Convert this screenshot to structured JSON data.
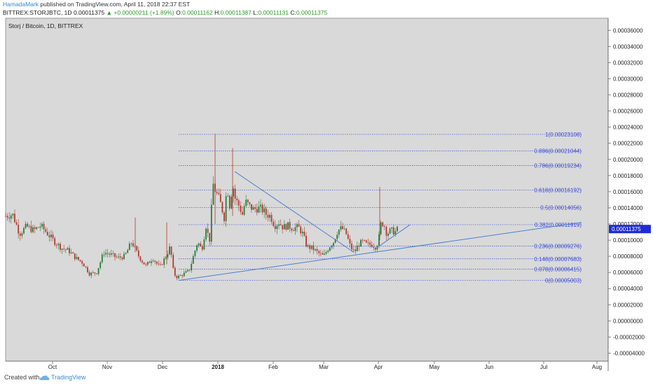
{
  "header": {
    "author": "HamadaMark",
    "published": "published on TradingView.com, April 11, 2018 22:37 EST",
    "symbol_line_prefix": "BITTREX:STORJBTC, 1D",
    "last": "0.00011375",
    "change": "+0.00000211 (+1.89%)",
    "o_label": "O:",
    "o_value": "0.00011162",
    "h_label": "H:",
    "h_value": "0.00011387",
    "l_label": "L:",
    "l_value": "0.00011131",
    "c_label": "C:",
    "c_value": "0.00011375"
  },
  "footer": {
    "created_with": "Created with",
    "brand": "TradingView",
    "logo_icon": "tradingview-cloud-icon"
  },
  "colors": {
    "background": "#d9d9d9",
    "up_candle": "#2a7a3a",
    "down_candle": "#b03a2e",
    "fib_line": "#3a4bd6",
    "trend_line": "#4a7fd4",
    "price_tag": "#1f2cd6"
  },
  "chart_data": {
    "type": "candlestick",
    "title": "Storj / Bitcoin, 1D, BITTREX",
    "x_ticks": [
      "Oct",
      "Nov",
      "Dec",
      "2018",
      "Feb",
      "Mar",
      "Apr",
      "May",
      "Jun",
      "Jul",
      "Aug"
    ],
    "y_ticks": [
      "0.00036000",
      "0.00034000",
      "0.00032000",
      "0.00030000",
      "0.00028000",
      "0.00026000",
      "0.00024000",
      "0.00022000",
      "0.00020000",
      "0.00018000",
      "0.00016000",
      "0.00014000",
      "0.00012000",
      "0.00010000",
      "0.00008000",
      "0.00006000",
      "0.00004000",
      "0.00002000",
      "0.00000000",
      "-0.00002000",
      "-0.00004000"
    ],
    "ylim": [
      -5e-05,
      0.000375
    ],
    "current_price_label": "0.00011375",
    "current_price": 0.00011375,
    "fib_levels": [
      {
        "label": "1(0.00023108)",
        "value": 0.00023108
      },
      {
        "label": "0.886(0.00021044)",
        "value": 0.00021044
      },
      {
        "label": "0.786(0.00019234)",
        "value": 0.00019234
      },
      {
        "label": "0.618(0.00016192)",
        "value": 0.00016192
      },
      {
        "label": "0.5(0.00014056)",
        "value": 0.00014056
      },
      {
        "label": "0.382(0.00011919)",
        "value": 0.00011919
      },
      {
        "label": "0.236(0.00009276)",
        "value": 9.276e-05
      },
      {
        "label": "0.148(0.00007683)",
        "value": 7.683e-05
      },
      {
        "label": "0.078(0.00006415)",
        "value": 6.415e-05
      },
      {
        "label": "0(0.00005003)",
        "value": 5.003e-05
      }
    ],
    "path_points": [
      [
        0,
        0.000165
      ],
      [
        8,
        0.00013
      ],
      [
        18,
        0.000132
      ],
      [
        28,
        0.000108
      ],
      [
        38,
        0.000117
      ],
      [
        48,
        0.000112
      ],
      [
        58,
        0.000118
      ],
      [
        68,
        0.000108
      ],
      [
        78,
        9.8e-05
      ],
      [
        88,
        9e-05
      ],
      [
        98,
        8.7e-05
      ],
      [
        108,
        7.8e-05
      ],
      [
        118,
        7.2e-05
      ],
      [
        128,
        5.8e-05
      ],
      [
        138,
        6e-05
      ],
      [
        148,
        8.5e-05
      ],
      [
        158,
        8.2e-05
      ],
      [
        168,
        7.8e-05
      ],
      [
        178,
        8e-05
      ],
      [
        188,
        9.8e-05
      ],
      [
        198,
        8e-05
      ],
      [
        208,
        6.8e-05
      ],
      [
        218,
        7.8e-05
      ],
      [
        228,
        6.6e-05
      ],
      [
        238,
        8.2e-05
      ],
      [
        243,
        9.2e-05
      ],
      [
        248,
        5.8e-05
      ],
      [
        253,
        5.4e-05
      ],
      [
        262,
        5.8e-05
      ],
      [
        270,
        6.2e-05
      ],
      [
        276,
        8e-05
      ],
      [
        282,
        9.8e-05
      ],
      [
        288,
        8.8e-05
      ],
      [
        294,
        0.000118
      ],
      [
        299,
        9.8e-05
      ],
      [
        304,
        0.00017
      ],
      [
        308,
        0.00016
      ],
      [
        312,
        0.000152
      ],
      [
        316,
        0.000142
      ],
      [
        320,
        0.000128
      ],
      [
        324,
        0.000168
      ],
      [
        328,
        0.000142
      ],
      [
        332,
        0.00017
      ],
      [
        336,
        0.00015
      ],
      [
        340,
        0.000145
      ],
      [
        346,
        0.000132
      ],
      [
        350,
        0.000148
      ],
      [
        356,
        0.000142
      ],
      [
        362,
        0.000138
      ],
      [
        368,
        0.00014
      ],
      [
        374,
        0.000138
      ],
      [
        380,
        0.000132
      ],
      [
        386,
        0.00013
      ],
      [
        392,
        0.000118
      ],
      [
        398,
        0.000122
      ],
      [
        404,
        0.000116
      ],
      [
        410,
        0.000118
      ],
      [
        418,
        0.000115
      ],
      [
        426,
        0.000116
      ],
      [
        432,
        0.000108
      ],
      [
        438,
        9.2e-05
      ],
      [
        446,
        9e-05
      ],
      [
        454,
        8.4e-05
      ],
      [
        462,
        8e-05
      ],
      [
        470,
        9.2e-05
      ],
      [
        476,
        9.8e-05
      ],
      [
        482,
        0.000112
      ],
      [
        488,
        0.000115
      ],
      [
        494,
        0.000108
      ],
      [
        500,
        9.2e-05
      ],
      [
        506,
        8.5e-05
      ],
      [
        512,
        9.5e-05
      ],
      [
        518,
        9.8e-05
      ],
      [
        524,
        9.4e-05
      ],
      [
        530,
        9.5e-05
      ],
      [
        536,
        9.2e-05
      ],
      [
        540,
        9.8e-05
      ],
      [
        544,
        0.000122
      ],
      [
        548,
        0.00012
      ],
      [
        552,
        0.000108
      ],
      [
        558,
        0.000112
      ],
      [
        564,
        0.00011
      ],
      [
        568,
        0.000114
      ]
    ],
    "spikes": [
      {
        "x": 307,
        "high": 0.000232,
        "low": 0.00012
      },
      {
        "x": 332,
        "high": 0.000214,
        "low": 0.00013
      },
      {
        "x": 542,
        "high": 0.000166,
        "low": 0.0001
      },
      {
        "x": 193,
        "high": 0.000128,
        "low": 8.5e-05
      },
      {
        "x": 238,
        "high": 0.000122,
        "low": 7e-05
      }
    ],
    "trendlines": [
      {
        "x1": 255,
        "y1": 5.003e-05,
        "x2": 830,
        "y2": 0.000122
      },
      {
        "x1": 335,
        "y1": 0.000185,
        "x2": 505,
        "y2": 8.5e-05
      },
      {
        "x1": 540,
        "y1": 9.2e-05,
        "x2": 585,
        "y2": 0.000119
      }
    ],
    "fib_x_start": 255,
    "fib_x_end": 830
  }
}
